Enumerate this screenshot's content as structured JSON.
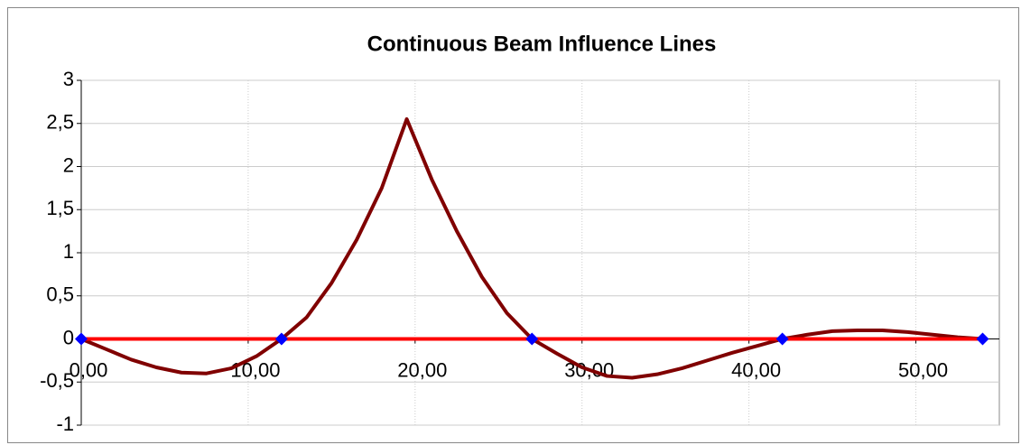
{
  "chart_data": {
    "type": "line",
    "title": "Continuous Beam Influence Lines",
    "xlim": [
      0,
      55
    ],
    "ylim": [
      -1,
      3
    ],
    "xticks": [
      {
        "value": 0,
        "label": "0,00"
      },
      {
        "value": 10,
        "label": "10,00"
      },
      {
        "value": 20,
        "label": "20,00"
      },
      {
        "value": 30,
        "label": "30,00"
      },
      {
        "value": 40,
        "label": "40,00"
      },
      {
        "value": 50,
        "label": "50,00"
      }
    ],
    "yticks": [
      {
        "value": -1,
        "label": "-1"
      },
      {
        "value": -0.5,
        "label": "-0,5"
      },
      0,
      {
        "value": 0.5,
        "label": "0,5"
      },
      1,
      {
        "value": 1.5,
        "label": "1,5"
      },
      2,
      {
        "value": 2.5,
        "label": "2,5"
      },
      3
    ],
    "grid": true,
    "series": [
      {
        "color": "#800000",
        "width": 4,
        "marker": "none",
        "x": [
          0,
          1.5,
          3,
          4.5,
          6,
          7.5,
          9,
          10.5,
          12,
          13.5,
          15,
          16.5,
          18,
          19.5,
          21,
          22.5,
          24,
          25.5,
          27,
          28.5,
          30,
          31.5,
          33,
          34.5,
          36,
          37.5,
          39,
          40.5,
          42,
          43.5,
          45,
          46.5,
          48,
          49.5,
          51,
          52.5,
          54
        ],
        "values": [
          0,
          -0.12,
          -0.24,
          -0.33,
          -0.39,
          -0.4,
          -0.34,
          -0.2,
          0,
          0.25,
          0.65,
          1.15,
          1.75,
          2.55,
          1.85,
          1.25,
          0.72,
          0.3,
          0,
          -0.17,
          -0.33,
          -0.43,
          -0.45,
          -0.41,
          -0.34,
          -0.25,
          -0.16,
          -0.08,
          0,
          0.05,
          0.09,
          0.1,
          0.1,
          0.08,
          0.05,
          0.02,
          0
        ]
      },
      {
        "color": "#ff0000",
        "width": 4,
        "marker": "none",
        "x": [
          0,
          54
        ],
        "values": [
          0,
          0
        ]
      },
      {
        "color": "#0000ff",
        "width": 0,
        "marker": "diamond",
        "x": [
          0,
          12,
          27,
          42,
          54
        ],
        "values": [
          0,
          0,
          0,
          0,
          0
        ]
      }
    ]
  }
}
